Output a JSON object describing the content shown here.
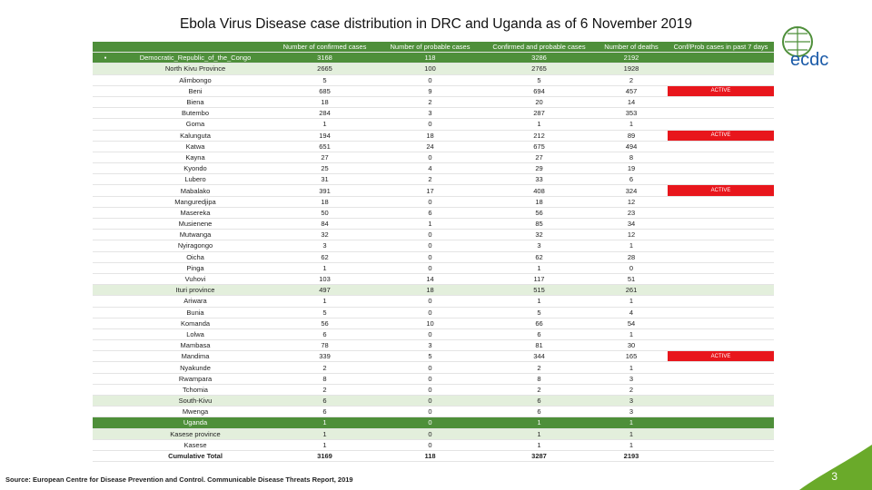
{
  "title": "Ebola Virus Disease case distribution in DRC and Uganda as of 6 November 2019",
  "logo": "ecdc",
  "table": {
    "header": [
      "Number of confirmed cases",
      "Number of probable cases",
      "Confirmed and probable cases",
      "Number of deaths",
      "Conf/Prob cases in past 7 days"
    ],
    "rows": [
      {
        "name": "Democratic_Republic_of_the_Congo",
        "values": [
          3168,
          118,
          3286,
          2192
        ]
      },
      {
        "name": "North Kivu Province",
        "values": [
          2665,
          100,
          2765,
          1928
        ]
      },
      {
        "name": "Alimbongo",
        "values": [
          5,
          0,
          5,
          2
        ]
      },
      {
        "name": "Beni",
        "values": [
          685,
          9,
          694,
          457
        ],
        "status": "ACTIVE"
      },
      {
        "name": "Biena",
        "values": [
          18,
          2,
          20,
          14
        ]
      },
      {
        "name": "Butembo",
        "values": [
          284,
          3,
          287,
          353
        ]
      },
      {
        "name": "Goma",
        "values": [
          1,
          0,
          1,
          1
        ]
      },
      {
        "name": "Kalunguta",
        "values": [
          194,
          18,
          212,
          89
        ],
        "status": "ACTIVE"
      },
      {
        "name": "Katwa",
        "values": [
          651,
          24,
          675,
          494
        ]
      },
      {
        "name": "Kayna",
        "values": [
          27,
          0,
          27,
          8
        ]
      },
      {
        "name": "Kyondo",
        "values": [
          25,
          4,
          29,
          19
        ]
      },
      {
        "name": "Lubero",
        "values": [
          31,
          2,
          33,
          6
        ]
      },
      {
        "name": "Mabalako",
        "values": [
          391,
          17,
          408,
          324
        ],
        "status": "ACTIVE"
      },
      {
        "name": "Manguredjipa",
        "values": [
          18,
          0,
          18,
          12
        ]
      },
      {
        "name": "Masereka",
        "values": [
          50,
          6,
          56,
          23
        ]
      },
      {
        "name": "Musienene",
        "values": [
          84,
          1,
          85,
          34
        ]
      },
      {
        "name": "Mutwanga",
        "values": [
          32,
          0,
          32,
          12
        ]
      },
      {
        "name": "Nyiragongo",
        "values": [
          3,
          0,
          3,
          1
        ]
      },
      {
        "name": "Oicha",
        "values": [
          62,
          0,
          62,
          28
        ]
      },
      {
        "name": "Pinga",
        "values": [
          1,
          0,
          1,
          0
        ]
      },
      {
        "name": "Vuhovi",
        "values": [
          103,
          14,
          117,
          51
        ]
      },
      {
        "name": "Ituri province",
        "values": [
          497,
          18,
          515,
          261
        ]
      },
      {
        "name": "Ariwara",
        "values": [
          1,
          0,
          1,
          1
        ]
      },
      {
        "name": "Bunia",
        "values": [
          5,
          0,
          5,
          4
        ]
      },
      {
        "name": "Komanda",
        "values": [
          56,
          10,
          66,
          54
        ]
      },
      {
        "name": "Lolwa",
        "values": [
          6,
          0,
          6,
          1
        ]
      },
      {
        "name": "Mambasa",
        "values": [
          78,
          3,
          81,
          30
        ]
      },
      {
        "name": "Mandima",
        "values": [
          339,
          5,
          344,
          165
        ],
        "status": "ACTIVE"
      },
      {
        "name": "Nyakunde",
        "values": [
          2,
          0,
          2,
          1
        ]
      },
      {
        "name": "Rwampara",
        "values": [
          8,
          0,
          8,
          3
        ]
      },
      {
        "name": "Tchomia",
        "values": [
          2,
          0,
          2,
          2
        ]
      },
      {
        "name": "South-Kivu",
        "values": [
          6,
          0,
          6,
          3
        ]
      },
      {
        "name": "Mwenga",
        "values": [
          6,
          0,
          6,
          3
        ]
      },
      {
        "name": "Uganda",
        "values": [
          1,
          0,
          1,
          1
        ]
      },
      {
        "name": "Kasese province",
        "values": [
          1,
          0,
          1,
          1
        ]
      },
      {
        "name": "Kasese",
        "values": [
          1,
          0,
          1,
          1
        ]
      }
    ],
    "total": {
      "name": "Cumulative Total",
      "values": [
        3169,
        118,
        3287,
        2193
      ]
    }
  },
  "source": "Source: European Centre for Disease Prevention and Control. Communicable Disease Threats Report, 2019",
  "page_number": "3"
}
